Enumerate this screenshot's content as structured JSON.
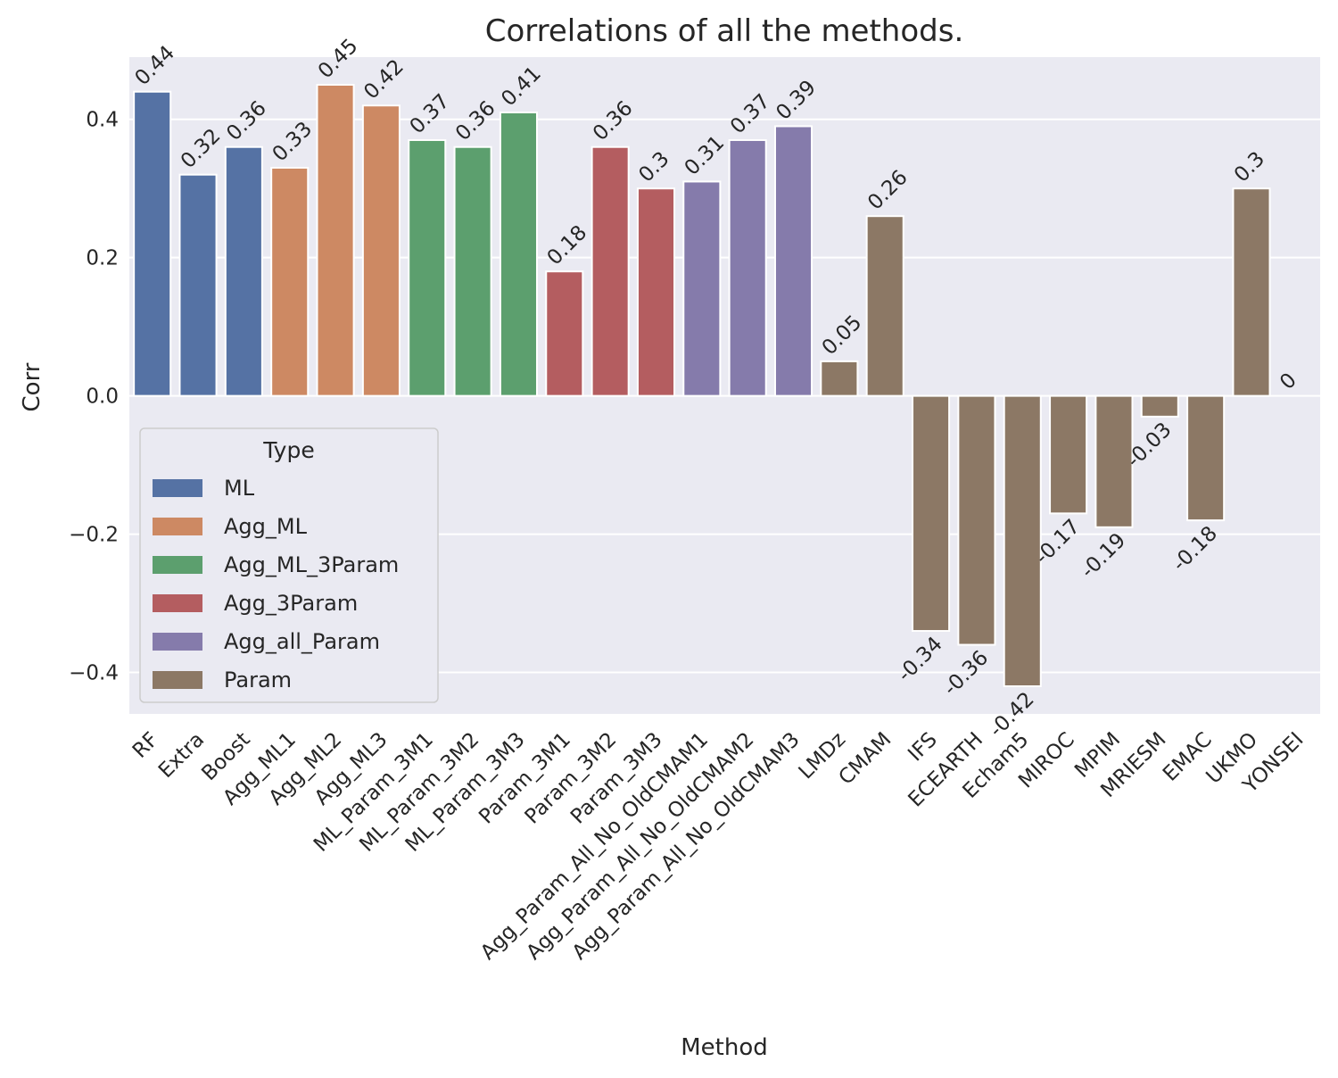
{
  "chart_data": {
    "type": "bar",
    "title": "Correlations of all the methods.",
    "xlabel": "Method",
    "ylabel": "Corr",
    "ylim": [
      -0.46,
      0.49
    ],
    "yticks": [
      -0.4,
      -0.2,
      0.0,
      0.2,
      0.4
    ],
    "ytick_labels": [
      "−0.4",
      "−0.2",
      "0.0",
      "0.2",
      "0.4"
    ],
    "grid": true,
    "legend": {
      "title": "Type",
      "placement": "lower-left",
      "entries": [
        {
          "name": "ML",
          "color": "#5572a4"
        },
        {
          "name": "Agg_ML",
          "color": "#cd8963"
        },
        {
          "name": "Agg_ML_3Param",
          "color": "#5c9f6e"
        },
        {
          "name": "Agg_3Param",
          "color": "#b45d60"
        },
        {
          "name": "Agg_all_Param",
          "color": "#857bab"
        },
        {
          "name": "Param",
          "color": "#8c7865"
        }
      ]
    },
    "categories": [
      "RF",
      "Extra",
      "Boost",
      "Agg_ML1",
      "Agg_ML2",
      "Agg_ML3",
      "ML_Param_3M1",
      "ML_Param_3M2",
      "ML_Param_3M3",
      "Param_3M1",
      "Param_3M2",
      "Param_3M3",
      "Agg_Param_All_No_OldCMAM1",
      "Agg_Param_All_No_OldCMAM2",
      "Agg_Param_All_No_OldCMAM3",
      "LMDz",
      "CMAM",
      "IFS",
      "ECEARTH",
      "Echam5",
      "MIROC",
      "MPIM",
      "MRIESM",
      "EMAC",
      "UKMO",
      "YONSEI"
    ],
    "values": [
      0.44,
      0.32,
      0.36,
      0.33,
      0.45,
      0.42,
      0.37,
      0.36,
      0.41,
      0.18,
      0.36,
      0.3,
      0.31,
      0.37,
      0.39,
      0.05,
      0.26,
      -0.34,
      -0.36,
      -0.42,
      -0.17,
      -0.19,
      -0.03,
      -0.18,
      0.3,
      0
    ],
    "value_labels": [
      "0.44",
      "0.32",
      "0.36",
      "0.33",
      "0.45",
      "0.42",
      "0.37",
      "0.36",
      "0.41",
      "0.18",
      "0.36",
      "0.3",
      "0.31",
      "0.37",
      "0.39",
      "0.05",
      "0.26",
      "-0.34",
      "-0.36",
      "-0.42",
      "-0.17",
      "-0.19",
      "-0.03",
      "-0.18",
      "0.3",
      "0"
    ],
    "types": [
      "ML",
      "ML",
      "ML",
      "Agg_ML",
      "Agg_ML",
      "Agg_ML",
      "Agg_ML_3Param",
      "Agg_ML_3Param",
      "Agg_ML_3Param",
      "Agg_3Param",
      "Agg_3Param",
      "Agg_3Param",
      "Agg_all_Param",
      "Agg_all_Param",
      "Agg_all_Param",
      "Param",
      "Param",
      "Param",
      "Param",
      "Param",
      "Param",
      "Param",
      "Param",
      "Param",
      "Param",
      "Param"
    ]
  }
}
